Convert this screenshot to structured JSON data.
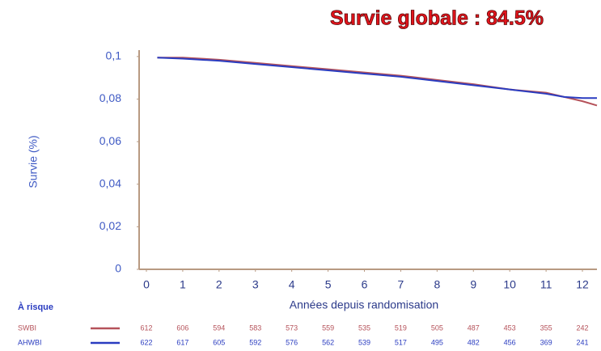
{
  "chart_data": {
    "type": "line",
    "title": "Survie globale : 84.5%",
    "y_label": "Survie (%)",
    "x_label": "Années depuis randomisation",
    "risk_title": "À risque",
    "x": [
      0.3,
      1,
      2,
      3,
      4,
      5,
      6,
      7,
      8,
      9,
      10,
      11,
      11.5,
      12,
      12.4
    ],
    "series": [
      {
        "name": "SWBI",
        "color": "#b5525a",
        "values": [
          0.0995,
          0.0995,
          0.0985,
          0.097,
          0.0955,
          0.094,
          0.0925,
          0.091,
          0.089,
          0.087,
          0.0845,
          0.083,
          0.081,
          0.079,
          0.077
        ],
        "at_risk": [
          612,
          606,
          594,
          583,
          573,
          559,
          535,
          519,
          505,
          487,
          453,
          355,
          242
        ]
      },
      {
        "name": "AHWBI",
        "color": "#2a3cc0",
        "values": [
          0.0995,
          0.099,
          0.098,
          0.0965,
          0.095,
          0.0935,
          0.092,
          0.0905,
          0.0885,
          0.0865,
          0.0845,
          0.0825,
          0.081,
          0.0805,
          0.0805
        ],
        "at_risk": [
          622,
          617,
          605,
          592,
          576,
          562,
          539,
          517,
          495,
          482,
          456,
          369,
          241
        ]
      }
    ],
    "xlim": [
      -0.2,
      12.4
    ],
    "xticks": [
      0,
      1,
      2,
      3,
      4,
      5,
      6,
      7,
      8,
      9,
      10,
      11,
      12
    ],
    "ylim": [
      0,
      0.103
    ],
    "yticks": [
      0,
      {
        "value": 0.02,
        "label": "0,02"
      },
      {
        "value": 0.04,
        "label": "0,04"
      },
      {
        "value": 0.06,
        "label": "0,06"
      },
      {
        "value": 0.08,
        "label": "0,08"
      },
      {
        "value": 0.1,
        "label": "0,1"
      }
    ],
    "grid": false
  }
}
